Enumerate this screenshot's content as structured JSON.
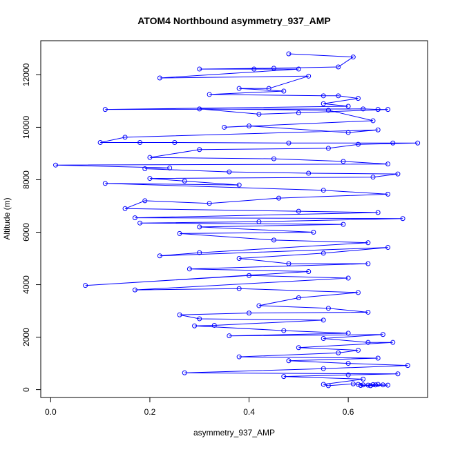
{
  "chart_data": {
    "type": "line",
    "title": "ATOM4 Northbound asymmetry_937_AMP",
    "xlabel": "asymmetry_937_AMP",
    "ylabel": "Altitude (m)",
    "xlim": [
      -0.02,
      0.76
    ],
    "ylim": [
      -300,
      13300
    ],
    "x_ticks": [
      0.0,
      0.2,
      0.4,
      0.6
    ],
    "x_tick_labels": [
      "0.0",
      "0.2",
      "0.4",
      "0.6"
    ],
    "y_ticks": [
      0,
      2000,
      4000,
      6000,
      8000,
      10000,
      12000
    ],
    "y_tick_labels": [
      "0",
      "2000",
      "4000",
      "6000",
      "8000",
      "10000",
      "12000"
    ],
    "grid": false,
    "legend": "none",
    "marker": "open-circle",
    "series": [
      {
        "color": "#0000ff",
        "points": [
          [
            0.48,
            12800
          ],
          [
            0.61,
            12680
          ],
          [
            0.58,
            12300
          ],
          [
            0.45,
            12250
          ],
          [
            0.3,
            12220
          ],
          [
            0.41,
            12220
          ],
          [
            0.5,
            12220
          ],
          [
            0.22,
            11880
          ],
          [
            0.52,
            11950
          ],
          [
            0.44,
            11480
          ],
          [
            0.38,
            11480
          ],
          [
            0.47,
            11380
          ],
          [
            0.32,
            11250
          ],
          [
            0.55,
            11200
          ],
          [
            0.58,
            11200
          ],
          [
            0.62,
            11100
          ],
          [
            0.55,
            10900
          ],
          [
            0.6,
            10800
          ],
          [
            0.11,
            10680
          ],
          [
            0.63,
            10700
          ],
          [
            0.66,
            10680
          ],
          [
            0.68,
            10680
          ],
          [
            0.5,
            10550
          ],
          [
            0.42,
            10500
          ],
          [
            0.3,
            10700
          ],
          [
            0.56,
            10650
          ],
          [
            0.65,
            10250
          ],
          [
            0.35,
            10000
          ],
          [
            0.4,
            10050
          ],
          [
            0.6,
            9800
          ],
          [
            0.66,
            9900
          ],
          [
            0.15,
            9620
          ],
          [
            0.1,
            9420
          ],
          [
            0.18,
            9420
          ],
          [
            0.25,
            9420
          ],
          [
            0.48,
            9400
          ],
          [
            0.69,
            9400
          ],
          [
            0.74,
            9400
          ],
          [
            0.62,
            9350
          ],
          [
            0.56,
            9200
          ],
          [
            0.3,
            9150
          ],
          [
            0.2,
            8850
          ],
          [
            0.45,
            8800
          ],
          [
            0.59,
            8700
          ],
          [
            0.68,
            8600
          ],
          [
            0.01,
            8560
          ],
          [
            0.24,
            8450
          ],
          [
            0.19,
            8420
          ],
          [
            0.36,
            8300
          ],
          [
            0.52,
            8250
          ],
          [
            0.7,
            8220
          ],
          [
            0.65,
            8100
          ],
          [
            0.2,
            8050
          ],
          [
            0.27,
            7950
          ],
          [
            0.38,
            7800
          ],
          [
            0.11,
            7860
          ],
          [
            0.55,
            7600
          ],
          [
            0.68,
            7450
          ],
          [
            0.46,
            7300
          ],
          [
            0.32,
            7100
          ],
          [
            0.19,
            7200
          ],
          [
            0.15,
            6900
          ],
          [
            0.5,
            6800
          ],
          [
            0.66,
            6750
          ],
          [
            0.17,
            6550
          ],
          [
            0.71,
            6520
          ],
          [
            0.42,
            6400
          ],
          [
            0.18,
            6350
          ],
          [
            0.59,
            6300
          ],
          [
            0.3,
            6200
          ],
          [
            0.53,
            6000
          ],
          [
            0.26,
            5950
          ],
          [
            0.45,
            5700
          ],
          [
            0.64,
            5600
          ],
          [
            0.3,
            5220
          ],
          [
            0.22,
            5100
          ],
          [
            0.68,
            5420
          ],
          [
            0.55,
            5200
          ],
          [
            0.38,
            5000
          ],
          [
            0.48,
            4800
          ],
          [
            0.64,
            4800
          ],
          [
            0.28,
            4600
          ],
          [
            0.52,
            4500
          ],
          [
            0.07,
            3970
          ],
          [
            0.4,
            4350
          ],
          [
            0.6,
            4250
          ],
          [
            0.17,
            3800
          ],
          [
            0.38,
            3850
          ],
          [
            0.62,
            3700
          ],
          [
            0.5,
            3500
          ],
          [
            0.42,
            3200
          ],
          [
            0.56,
            3100
          ],
          [
            0.64,
            2950
          ],
          [
            0.4,
            2920
          ],
          [
            0.26,
            2850
          ],
          [
            0.3,
            2700
          ],
          [
            0.55,
            2650
          ],
          [
            0.33,
            2450
          ],
          [
            0.29,
            2430
          ],
          [
            0.47,
            2250
          ],
          [
            0.6,
            2150
          ],
          [
            0.36,
            2050
          ],
          [
            0.67,
            2100
          ],
          [
            0.55,
            1950
          ],
          [
            0.64,
            1800
          ],
          [
            0.69,
            1800
          ],
          [
            0.5,
            1600
          ],
          [
            0.62,
            1500
          ],
          [
            0.58,
            1400
          ],
          [
            0.38,
            1250
          ],
          [
            0.66,
            1200
          ],
          [
            0.48,
            1100
          ],
          [
            0.6,
            1000
          ],
          [
            0.72,
            920
          ],
          [
            0.55,
            800
          ],
          [
            0.27,
            640
          ],
          [
            0.7,
            600
          ],
          [
            0.6,
            560
          ],
          [
            0.47,
            500
          ],
          [
            0.63,
            400
          ],
          [
            0.55,
            200
          ],
          [
            0.56,
            150
          ],
          [
            0.61,
            220
          ],
          [
            0.62,
            200
          ],
          [
            0.63,
            180
          ],
          [
            0.64,
            170
          ],
          [
            0.65,
            190
          ],
          [
            0.66,
            200
          ],
          [
            0.67,
            180
          ],
          [
            0.68,
            170
          ],
          [
            0.645,
            150
          ],
          [
            0.625,
            160
          ],
          [
            0.655,
            180
          ]
        ]
      }
    ]
  }
}
